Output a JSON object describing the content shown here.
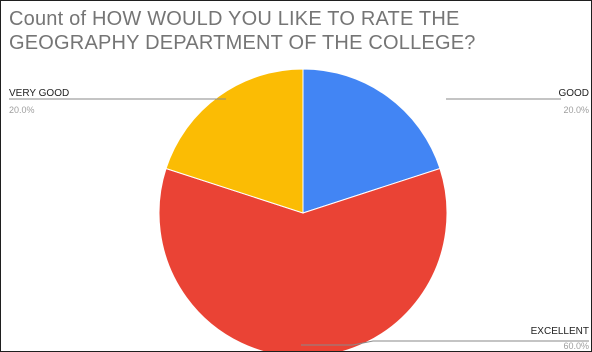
{
  "chart_data": {
    "type": "pie",
    "title_lines": [
      "Count of HOW WOULD YOU LIKE TO RATE THE",
      "GEOGRAPHY DEPARTMENT OF THE COLLEGE?"
    ],
    "slices": [
      {
        "label": "GOOD",
        "value": 20.0,
        "percent_label": "20.0%",
        "color": "#4285f4"
      },
      {
        "label": "EXCELLENT",
        "value": 60.0,
        "percent_label": "60.0%",
        "color": "#ea4335"
      },
      {
        "label": "VERY GOOD",
        "value": 20.0,
        "percent_label": "20.0%",
        "color": "#fbbc04"
      }
    ],
    "start_angle_deg": 0,
    "direction": "clockwise",
    "legend": "none"
  }
}
